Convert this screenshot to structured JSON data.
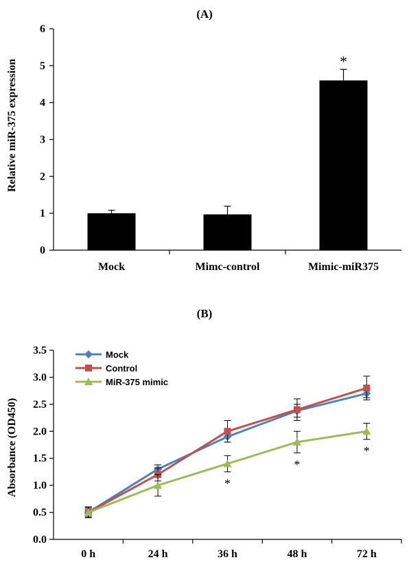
{
  "chart_data": [
    {
      "type": "bar",
      "title": "(A)",
      "ylabel": "Relative miR-375 expression",
      "xlabel": "",
      "categories": [
        "Mock",
        "Mimc-control",
        "Mimic-miR375"
      ],
      "values": [
        1.0,
        0.97,
        4.6
      ],
      "errors": [
        0.08,
        0.22,
        0.3
      ],
      "significance": [
        "",
        "",
        "*"
      ],
      "ylim": [
        0,
        6
      ],
      "yticks": [
        "0",
        "1",
        "2",
        "3",
        "4",
        "5",
        "6"
      ],
      "bar_color": "#000000",
      "grid": false
    },
    {
      "type": "line",
      "title": "(B)",
      "ylabel": "Absorbance (OD450)",
      "xlabel": "",
      "x": [
        "0 h",
        "24 h",
        "36 h",
        "48 h",
        "72 h"
      ],
      "ylim": [
        0,
        3.5
      ],
      "yticks": [
        "0.0",
        "0.5",
        "1.0",
        "1.5",
        "2.0",
        "2.5",
        "3.0",
        "3.5"
      ],
      "grid": false,
      "legend": "top-left",
      "series": [
        {
          "name": "Mock",
          "color": "#4f81bd",
          "marker": "diamond",
          "values": [
            0.5,
            1.3,
            1.9,
            2.38,
            2.7
          ],
          "errors": [
            0.08,
            0.08,
            0.1,
            0.12,
            0.08
          ]
        },
        {
          "name": "Control",
          "color": "#c0504d",
          "marker": "square",
          "values": [
            0.5,
            1.2,
            2.0,
            2.4,
            2.8
          ],
          "errors": [
            0.1,
            0.12,
            0.2,
            0.2,
            0.22
          ]
        },
        {
          "name": "MiR-375 mimic",
          "color": "#9bbb59",
          "marker": "triangle",
          "values": [
            0.5,
            1.0,
            1.4,
            1.8,
            2.0
          ],
          "errors": [
            0.1,
            0.2,
            0.15,
            0.2,
            0.15
          ]
        }
      ],
      "significance": [
        "",
        "",
        "*",
        "*",
        "*"
      ]
    }
  ]
}
